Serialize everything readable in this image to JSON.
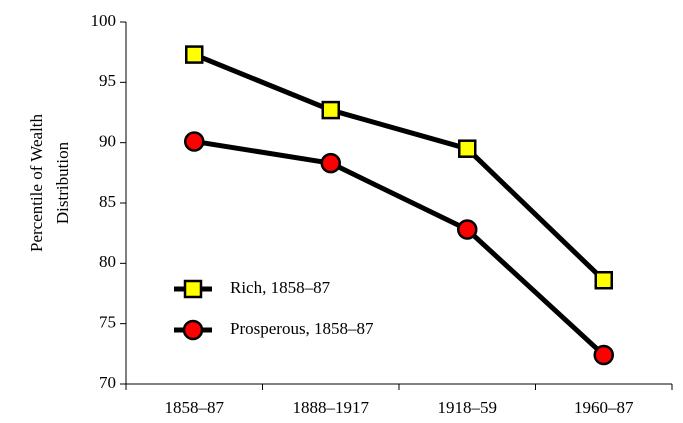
{
  "chart_data": {
    "type": "line",
    "ylabel": [
      "Percentile of Wealth",
      "Distribution"
    ],
    "categories": [
      "1858–87",
      "1888–1917",
      "1918–59",
      "1960–87"
    ],
    "series": [
      {
        "name": "Rich, 1858–87",
        "color": "#ffff00",
        "marker": "square",
        "values": [
          97.3,
          92.7,
          89.5,
          78.6
        ]
      },
      {
        "name": "Prosperous, 1858–87",
        "color": "#ff0000",
        "marker": "circle",
        "values": [
          90.1,
          88.3,
          82.8,
          72.4
        ]
      }
    ],
    "ylim": [
      70,
      100
    ],
    "yticks": [
      70,
      75,
      80,
      85,
      90,
      95,
      100
    ]
  }
}
